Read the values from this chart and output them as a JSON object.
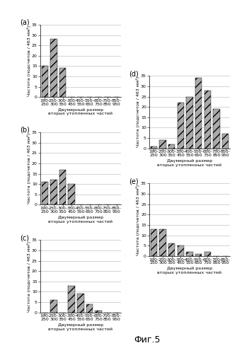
{
  "categories": [
    "190-\n250",
    "250-\n300",
    "300-\n350",
    "350-\n450",
    "450-\n550",
    "550-\n650",
    "650-\n750",
    "750-\n850",
    "850-\n950"
  ],
  "a_values": [
    15,
    28,
    14,
    0,
    0,
    0,
    0,
    0,
    0
  ],
  "b_values": [
    11,
    12,
    17,
    10,
    0,
    0,
    0,
    0,
    0
  ],
  "c_values": [
    0,
    6,
    0,
    13,
    9,
    4,
    1,
    0,
    0
  ],
  "d_values": [
    1,
    4,
    2,
    22,
    25,
    34,
    28,
    19,
    7
  ],
  "e_values": [
    13,
    13,
    6,
    5,
    2,
    1,
    2,
    0,
    0
  ],
  "bar_color": "#aaaaaa",
  "bar_hatch": "///",
  "ylim": [
    0,
    35
  ],
  "yticks": [
    0,
    5,
    10,
    15,
    20,
    25,
    30,
    35
  ],
  "ylabel": "Частота (подсчетов / 463 мм²)",
  "xlabel_line1": "Двумерный размер",
  "xlabel_line2": "вторых утопленных частей",
  "label_a": "(a)",
  "label_b": "(b)",
  "label_c": "(c)",
  "label_d": "(d)",
  "label_e": "(e)",
  "fig_label": "Фиг.5",
  "tick_fontsize": 4.5,
  "label_fontsize": 4.5,
  "panel_label_fontsize": 7,
  "fig_label_fontsize": 9
}
